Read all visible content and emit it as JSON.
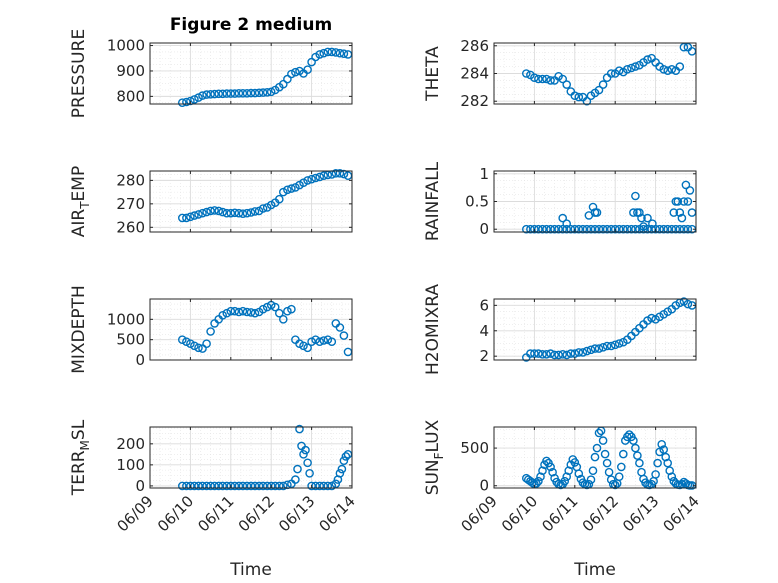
{
  "figure": {
    "title": "Figure 2 medium",
    "marker_color": "#0072BD",
    "grid": true,
    "minor_grid": true
  },
  "chart_data": [
    {
      "type": "scatter",
      "name": "pressure",
      "ylabel": "PRESSURE",
      "ylabel_sub": "",
      "ylabel_tail": "",
      "ylim": [
        770,
        1010
      ],
      "yticks": [
        800,
        900,
        1000
      ],
      "xlim": [
        "06/09",
        "06/14"
      ],
      "xticks": [
        "06/09",
        "06/10",
        "06/11",
        "06/12",
        "06/13",
        "06/14"
      ],
      "x": [
        0.8,
        0.9,
        1.0,
        1.1,
        1.2,
        1.3,
        1.4,
        1.5,
        1.6,
        1.7,
        1.8,
        1.9,
        2.0,
        2.1,
        2.2,
        2.3,
        2.4,
        2.5,
        2.6,
        2.7,
        2.8,
        2.9,
        3.0,
        3.1,
        3.2,
        3.3,
        3.4,
        3.5,
        3.6,
        3.7,
        3.8,
        3.9,
        4.0,
        4.1,
        4.2,
        4.3,
        4.4,
        4.5,
        4.6,
        4.7,
        4.8,
        4.9
      ],
      "y": [
        775,
        778,
        782,
        788,
        795,
        803,
        807,
        808,
        809,
        810,
        810,
        811,
        811,
        811,
        812,
        812,
        812,
        813,
        813,
        814,
        815,
        816,
        818,
        825,
        836,
        848,
        868,
        888,
        895,
        900,
        890,
        905,
        935,
        955,
        965,
        970,
        975,
        975,
        973,
        970,
        968,
        965
      ]
    },
    {
      "type": "scatter",
      "name": "theta",
      "ylabel": "THETA",
      "ylabel_sub": "",
      "ylabel_tail": "",
      "ylim": [
        281.8,
        286.2
      ],
      "yticks": [
        282,
        284,
        286
      ],
      "xlim": [
        "06/09",
        "06/14"
      ],
      "xticks": [
        "06/09",
        "06/10",
        "06/11",
        "06/12",
        "06/13",
        "06/14"
      ],
      "x": [
        0.8,
        0.9,
        1.0,
        1.1,
        1.2,
        1.3,
        1.4,
        1.5,
        1.6,
        1.7,
        1.8,
        1.9,
        2.0,
        2.1,
        2.2,
        2.3,
        2.4,
        2.5,
        2.6,
        2.7,
        2.8,
        2.9,
        3.0,
        3.1,
        3.2,
        3.3,
        3.4,
        3.5,
        3.6,
        3.7,
        3.8,
        3.9,
        4.0,
        4.1,
        4.2,
        4.3,
        4.4,
        4.5,
        4.6,
        4.7,
        4.8,
        4.9
      ],
      "y": [
        284.0,
        283.9,
        283.7,
        283.6,
        283.6,
        283.6,
        283.5,
        283.5,
        283.8,
        283.6,
        283.2,
        282.7,
        282.4,
        282.3,
        282.3,
        282.0,
        282.4,
        282.6,
        282.8,
        283.2,
        283.7,
        284.0,
        284.0,
        284.2,
        284.1,
        284.3,
        284.4,
        284.5,
        284.6,
        284.8,
        285.0,
        285.1,
        284.8,
        284.5,
        284.3,
        284.2,
        284.3,
        284.2,
        284.5,
        285.9,
        285.9,
        285.6
      ]
    },
    {
      "type": "scatter",
      "name": "air_temp",
      "ylabel": "AIR",
      "ylabel_sub": "T",
      "ylabel_tail": "EMP",
      "ylim": [
        258,
        284
      ],
      "yticks": [
        260,
        270,
        280
      ],
      "xlim": [
        "06/09",
        "06/14"
      ],
      "xticks": [
        "06/09",
        "06/10",
        "06/11",
        "06/12",
        "06/13",
        "06/14"
      ],
      "x": [
        0.8,
        0.9,
        1.0,
        1.1,
        1.2,
        1.3,
        1.4,
        1.5,
        1.6,
        1.7,
        1.8,
        1.9,
        2.0,
        2.1,
        2.2,
        2.3,
        2.4,
        2.5,
        2.6,
        2.7,
        2.8,
        2.9,
        3.0,
        3.1,
        3.2,
        3.3,
        3.4,
        3.5,
        3.6,
        3.7,
        3.8,
        3.9,
        4.0,
        4.1,
        4.2,
        4.3,
        4.4,
        4.5,
        4.6,
        4.7,
        4.8,
        4.9
      ],
      "y": [
        264,
        264,
        264.5,
        265,
        265.5,
        266,
        266.5,
        267,
        267.2,
        267,
        266.5,
        266,
        266,
        266.2,
        266,
        265.8,
        266,
        266.3,
        266.8,
        267,
        268,
        268.5,
        269.5,
        270.5,
        272,
        275,
        276,
        276.5,
        277,
        278,
        279,
        280,
        280.5,
        281,
        281.5,
        282,
        282.3,
        282.5,
        283,
        283,
        282.7,
        282
      ]
    },
    {
      "type": "scatter",
      "name": "rainfall",
      "ylabel": "RAINFALL",
      "ylabel_sub": "",
      "ylabel_tail": "",
      "ylim": [
        -0.05,
        1.05
      ],
      "yticks": [
        0,
        0.5,
        1
      ],
      "xlim": [
        "06/09",
        "06/14"
      ],
      "xticks": [
        "06/09",
        "06/10",
        "06/11",
        "06/12",
        "06/13",
        "06/14"
      ],
      "x": [
        0.8,
        0.9,
        1.0,
        1.1,
        1.2,
        1.3,
        1.4,
        1.5,
        1.6,
        1.7,
        1.8,
        1.9,
        2.0,
        2.1,
        2.2,
        2.3,
        2.4,
        2.5,
        2.6,
        2.7,
        2.8,
        2.9,
        3.0,
        3.1,
        3.2,
        3.3,
        3.4,
        3.5,
        3.6,
        3.7,
        3.8,
        3.9,
        4.0,
        4.1,
        4.2,
        4.3,
        4.4,
        4.5,
        4.6,
        4.7,
        4.8,
        4.9,
        1.7,
        1.8,
        2.35,
        2.45,
        2.5,
        2.55,
        3.45,
        3.5,
        3.55,
        3.6,
        3.65,
        3.7,
        3.8,
        3.92,
        4.45,
        4.5,
        4.55,
        4.6,
        4.65,
        4.7,
        4.75,
        4.8,
        4.85,
        4.9
      ],
      "y": [
        0,
        0,
        0,
        0,
        0,
        0,
        0,
        0,
        0,
        0,
        0,
        0,
        0,
        0,
        0,
        0,
        0,
        0,
        0,
        0,
        0,
        0,
        0,
        0,
        0,
        0,
        0,
        0,
        0,
        0,
        0,
        0,
        0,
        0,
        0,
        0,
        0,
        0,
        0,
        0,
        0,
        0,
        0.2,
        0.1,
        0.25,
        0.4,
        0.3,
        0.3,
        0.3,
        0.6,
        0.3,
        0.3,
        0.2,
        0.05,
        0.2,
        0.1,
        0.3,
        0.5,
        0.5,
        0.3,
        0.2,
        0.5,
        0.8,
        0.5,
        0.7,
        0.3
      ]
    },
    {
      "type": "scatter",
      "name": "mixdepth",
      "ylabel": "MIXDEPTH",
      "ylabel_sub": "",
      "ylabel_tail": "",
      "ylim": [
        0,
        1500
      ],
      "yticks": [
        0,
        500,
        1000
      ],
      "xlim": [
        "06/09",
        "06/14"
      ],
      "xticks": [
        "06/09",
        "06/10",
        "06/11",
        "06/12",
        "06/13",
        "06/14"
      ],
      "x": [
        0.8,
        0.9,
        1.0,
        1.1,
        1.2,
        1.3,
        1.4,
        1.5,
        1.6,
        1.7,
        1.8,
        1.9,
        2.0,
        2.1,
        2.2,
        2.3,
        2.4,
        2.5,
        2.6,
        2.7,
        2.8,
        2.9,
        3.0,
        3.1,
        3.2,
        3.3,
        3.4,
        3.5,
        3.6,
        3.7,
        3.8,
        3.9,
        4.0,
        4.1,
        4.2,
        4.3,
        4.4,
        4.5,
        4.6,
        4.7,
        4.8,
        4.9
      ],
      "y": [
        500,
        450,
        400,
        350,
        300,
        280,
        400,
        700,
        900,
        1000,
        1100,
        1150,
        1200,
        1200,
        1180,
        1200,
        1180,
        1170,
        1150,
        1180,
        1250,
        1300,
        1350,
        1300,
        1150,
        1000,
        1200,
        1250,
        500,
        400,
        350,
        300,
        450,
        500,
        450,
        480,
        500,
        450,
        900,
        800,
        600,
        200
      ]
    },
    {
      "type": "scatter",
      "name": "h2omixra",
      "ylabel": "H2OMIXRA",
      "ylabel_sub": "",
      "ylabel_tail": "",
      "ylim": [
        1.7,
        6.5
      ],
      "yticks": [
        2,
        4,
        6
      ],
      "xlim": [
        "06/09",
        "06/14"
      ],
      "xticks": [
        "06/09",
        "06/10",
        "06/11",
        "06/12",
        "06/13",
        "06/14"
      ],
      "x": [
        0.8,
        0.9,
        1.0,
        1.1,
        1.2,
        1.3,
        1.4,
        1.5,
        1.6,
        1.7,
        1.8,
        1.9,
        2.0,
        2.1,
        2.2,
        2.3,
        2.4,
        2.5,
        2.6,
        2.7,
        2.8,
        2.9,
        3.0,
        3.1,
        3.2,
        3.3,
        3.4,
        3.5,
        3.6,
        3.7,
        3.8,
        3.9,
        4.0,
        4.1,
        4.2,
        4.3,
        4.4,
        4.5,
        4.6,
        4.7,
        4.8,
        4.9
      ],
      "y": [
        1.9,
        2.2,
        2.2,
        2.2,
        2.15,
        2.15,
        2.2,
        2.1,
        2.1,
        2.15,
        2.1,
        2.2,
        2.2,
        2.3,
        2.3,
        2.4,
        2.5,
        2.6,
        2.6,
        2.7,
        2.8,
        2.8,
        2.9,
        3.0,
        3.1,
        3.3,
        3.6,
        3.9,
        4.2,
        4.5,
        4.8,
        5.0,
        4.9,
        5.1,
        5.3,
        5.5,
        5.7,
        6.0,
        6.2,
        6.3,
        6.1,
        6.0
      ]
    },
    {
      "type": "scatter",
      "name": "terr_msl",
      "ylabel": "TERR",
      "ylabel_sub": "M",
      "ylabel_tail": "SL",
      "ylim": [
        -10,
        280
      ],
      "yticks": [
        0,
        100,
        200
      ],
      "xlim": [
        "06/09",
        "06/14"
      ],
      "xticks": [
        "06/09",
        "06/10",
        "06/11",
        "06/12",
        "06/13",
        "06/14"
      ],
      "x": [
        0.8,
        0.9,
        1.0,
        1.1,
        1.2,
        1.3,
        1.4,
        1.5,
        1.6,
        1.7,
        1.8,
        1.9,
        2.0,
        2.1,
        2.2,
        2.3,
        2.4,
        2.5,
        2.6,
        2.7,
        2.8,
        2.9,
        3.0,
        3.1,
        3.2,
        3.3,
        3.4,
        3.5,
        3.6,
        3.65,
        3.7,
        3.75,
        3.8,
        3.85,
        3.9,
        3.95,
        4.0,
        4.1,
        4.2,
        4.3,
        4.4,
        4.5,
        4.6,
        4.65,
        4.7,
        4.75,
        4.8,
        4.85,
        4.9
      ],
      "y": [
        0,
        0,
        0,
        0,
        0,
        0,
        0,
        0,
        0,
        0,
        0,
        0,
        0,
        0,
        0,
        0,
        0,
        0,
        0,
        0,
        0,
        0,
        0,
        0,
        0,
        0,
        5,
        10,
        30,
        80,
        270,
        190,
        150,
        170,
        110,
        60,
        0,
        0,
        0,
        0,
        0,
        0,
        10,
        30,
        60,
        80,
        120,
        140,
        150
      ]
    },
    {
      "type": "scatter",
      "name": "sun_flux",
      "ylabel": "SUN",
      "ylabel_sub": "F",
      "ylabel_tail": "LUX",
      "ylim": [
        -30,
        780
      ],
      "yticks": [
        0,
        500
      ],
      "xlim": [
        "06/09",
        "06/14"
      ],
      "xticks": [
        "06/09",
        "06/10",
        "06/11",
        "06/12",
        "06/13",
        "06/14"
      ],
      "x": [
        0.8,
        0.85,
        0.9,
        0.95,
        1.0,
        1.05,
        1.1,
        1.15,
        1.2,
        1.25,
        1.3,
        1.35,
        1.4,
        1.45,
        1.5,
        1.55,
        1.6,
        1.65,
        1.7,
        1.75,
        1.8,
        1.85,
        1.9,
        1.95,
        2.0,
        2.05,
        2.1,
        2.15,
        2.2,
        2.25,
        2.3,
        2.35,
        2.4,
        2.45,
        2.5,
        2.55,
        2.6,
        2.65,
        2.7,
        2.75,
        2.8,
        2.85,
        2.9,
        2.95,
        3.0,
        3.05,
        3.1,
        3.15,
        3.2,
        3.25,
        3.3,
        3.35,
        3.4,
        3.45,
        3.5,
        3.55,
        3.6,
        3.65,
        3.7,
        3.75,
        3.8,
        3.85,
        3.9,
        3.95,
        4.0,
        4.05,
        4.1,
        4.15,
        4.2,
        4.25,
        4.3,
        4.35,
        4.4,
        4.45,
        4.5,
        4.55,
        4.6,
        4.65,
        4.7,
        4.75,
        4.8,
        4.85,
        4.9
      ],
      "y": [
        100,
        80,
        60,
        40,
        20,
        30,
        60,
        120,
        200,
        280,
        330,
        300,
        250,
        180,
        100,
        50,
        20,
        10,
        20,
        60,
        120,
        200,
        280,
        350,
        310,
        250,
        160,
        90,
        40,
        20,
        10,
        20,
        80,
        200,
        380,
        500,
        700,
        730,
        600,
        420,
        300,
        180,
        80,
        20,
        10,
        30,
        120,
        250,
        420,
        600,
        650,
        680,
        650,
        600,
        500,
        400,
        300,
        180,
        90,
        40,
        15,
        10,
        20,
        60,
        150,
        300,
        450,
        550,
        480,
        380,
        300,
        200,
        120,
        60,
        30,
        15,
        10,
        20,
        50,
        30,
        10,
        5,
        5
      ]
    }
  ],
  "xlabel": "Time"
}
